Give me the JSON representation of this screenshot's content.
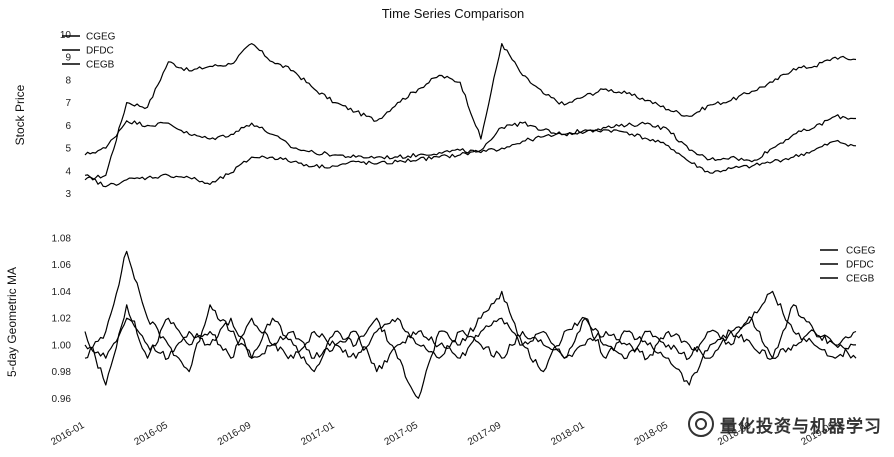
{
  "chart_data": [
    {
      "type": "line",
      "title": "Time Series Comparison",
      "xlabel": "",
      "ylabel": "Stock Price",
      "ylim": [
        2.8,
        10.2
      ],
      "yticks": [
        3,
        4,
        5,
        6,
        7,
        8,
        9,
        10
      ],
      "xlim": [
        "2016-01",
        "2019-02"
      ],
      "legend_position": "top-left",
      "grid": false,
      "x": [
        "2016-01",
        "2016-02",
        "2016-03",
        "2016-04",
        "2016-05",
        "2016-06",
        "2016-07",
        "2016-08",
        "2016-09",
        "2016-10",
        "2016-11",
        "2016-12",
        "2017-01",
        "2017-02",
        "2017-03",
        "2017-04",
        "2017-05",
        "2017-06",
        "2017-07",
        "2017-08",
        "2017-09",
        "2017-10",
        "2017-11",
        "2017-12",
        "2018-01",
        "2018-02",
        "2018-03",
        "2018-04",
        "2018-05",
        "2018-06",
        "2018-07",
        "2018-08",
        "2018-09",
        "2018-10",
        "2018-11",
        "2018-12",
        "2019-01",
        "2019-02"
      ],
      "series": [
        {
          "name": "CGEG",
          "values": [
            3.6,
            3.8,
            7.0,
            6.8,
            8.8,
            8.4,
            8.6,
            8.7,
            9.6,
            8.8,
            8.4,
            7.6,
            7.0,
            6.6,
            6.2,
            7.0,
            7.6,
            8.2,
            7.9,
            5.4,
            9.6,
            8.2,
            7.4,
            6.9,
            7.3,
            7.6,
            7.4,
            7.1,
            6.7,
            6.4,
            6.9,
            7.1,
            7.5,
            7.9,
            8.5,
            8.6,
            9.0,
            8.9
          ]
        },
        {
          "name": "DFDC",
          "values": [
            4.7,
            5.0,
            6.2,
            6.0,
            6.1,
            5.6,
            5.4,
            5.6,
            6.1,
            5.6,
            5.0,
            4.8,
            4.7,
            4.6,
            4.6,
            4.6,
            4.7,
            4.8,
            4.9,
            4.8,
            5.0,
            5.3,
            5.5,
            5.6,
            5.8,
            5.9,
            6.0,
            6.1,
            5.8,
            4.9,
            4.5,
            4.6,
            4.4,
            5.0,
            5.6,
            5.9,
            6.4,
            6.3
          ]
        },
        {
          "name": "CEGB",
          "values": [
            3.8,
            3.3,
            3.6,
            3.7,
            3.8,
            3.7,
            3.4,
            3.9,
            4.6,
            4.6,
            4.4,
            4.2,
            4.2,
            4.4,
            4.3,
            4.4,
            4.5,
            4.6,
            4.7,
            4.9,
            5.9,
            6.1,
            5.8,
            5.6,
            5.7,
            5.8,
            5.7,
            5.4,
            5.1,
            4.4,
            3.9,
            4.1,
            4.2,
            4.4,
            4.6,
            4.9,
            5.3,
            5.1
          ]
        }
      ]
    },
    {
      "type": "line",
      "title": "",
      "xlabel": "",
      "ylabel": "5-day Geometric MA",
      "ylim": [
        0.955,
        1.08
      ],
      "yticks": [
        0.96,
        0.98,
        1.0,
        1.02,
        1.04,
        1.06,
        1.08
      ],
      "ytick_labels": [
        "0.96",
        "0.98",
        "1.00",
        "1.02",
        "1.04",
        "1.06",
        "1.08"
      ],
      "xlim": [
        "2016-01",
        "2019-02"
      ],
      "xticks": [
        "2016-01",
        "2016-05",
        "2016-09",
        "2017-01",
        "2017-05",
        "2017-09",
        "2018-01",
        "2018-05",
        "2018-09",
        "2019-01"
      ],
      "legend_position": "right",
      "grid": false,
      "x": [
        "2016-01",
        "2016-02",
        "2016-03",
        "2016-04",
        "2016-05",
        "2016-06",
        "2016-07",
        "2016-08",
        "2016-09",
        "2016-10",
        "2016-11",
        "2016-12",
        "2017-01",
        "2017-02",
        "2017-03",
        "2017-04",
        "2017-05",
        "2017-06",
        "2017-07",
        "2017-08",
        "2017-09",
        "2017-10",
        "2017-11",
        "2017-12",
        "2018-01",
        "2018-02",
        "2018-03",
        "2018-04",
        "2018-05",
        "2018-06",
        "2018-07",
        "2018-08",
        "2018-09",
        "2018-10",
        "2018-11",
        "2018-12",
        "2019-01",
        "2019-02"
      ],
      "series": [
        {
          "name": "CGEG",
          "values": [
            0.99,
            1.01,
            1.07,
            1.02,
            1.0,
            0.98,
            1.03,
            1.01,
            0.99,
            1.02,
            1.0,
            0.98,
            1.01,
            1.0,
            1.02,
            0.99,
            0.96,
            1.01,
            1.0,
            1.02,
            1.04,
            1.0,
            0.98,
            1.01,
            1.02,
            0.99,
            1.01,
            1.0,
            0.99,
            0.97,
            1.0,
            1.01,
            1.02,
            1.04,
            1.01,
            1.0,
            0.99,
            1.0
          ]
        },
        {
          "name": "DFDC",
          "values": [
            1.01,
            0.97,
            1.03,
            0.99,
            1.02,
            1.0,
            1.01,
            0.99,
            1.02,
            1.0,
            0.99,
            1.01,
            1.0,
            0.99,
            1.01,
            1.02,
            1.0,
            0.99,
            1.01,
            1.0,
            0.99,
            1.01,
            1.0,
            0.99,
            1.02,
            1.0,
            0.99,
            1.01,
            1.0,
            0.99,
            1.01,
            1.0,
            1.02,
            0.99,
            1.03,
            1.01,
            1.0,
            0.99
          ]
        },
        {
          "name": "CEGB",
          "values": [
            1.0,
            0.99,
            1.02,
            1.0,
            0.99,
            1.01,
            1.0,
            1.02,
            0.99,
            1.0,
            1.01,
            0.99,
            1.0,
            1.01,
            0.98,
            1.0,
            1.01,
            1.0,
            0.99,
            1.01,
            1.02,
            1.0,
            1.01,
            0.99,
            1.0,
            1.01,
            1.0,
            0.99,
            1.01,
            1.0,
            0.99,
            1.01,
            1.0,
            0.99,
            1.0,
            1.01,
            1.0,
            1.01
          ]
        }
      ]
    }
  ],
  "watermark": "量化投资与机器学习",
  "watermark_icon": "wechat-logo-icon",
  "colors": {
    "line": "#000000",
    "background": "#ffffff"
  }
}
